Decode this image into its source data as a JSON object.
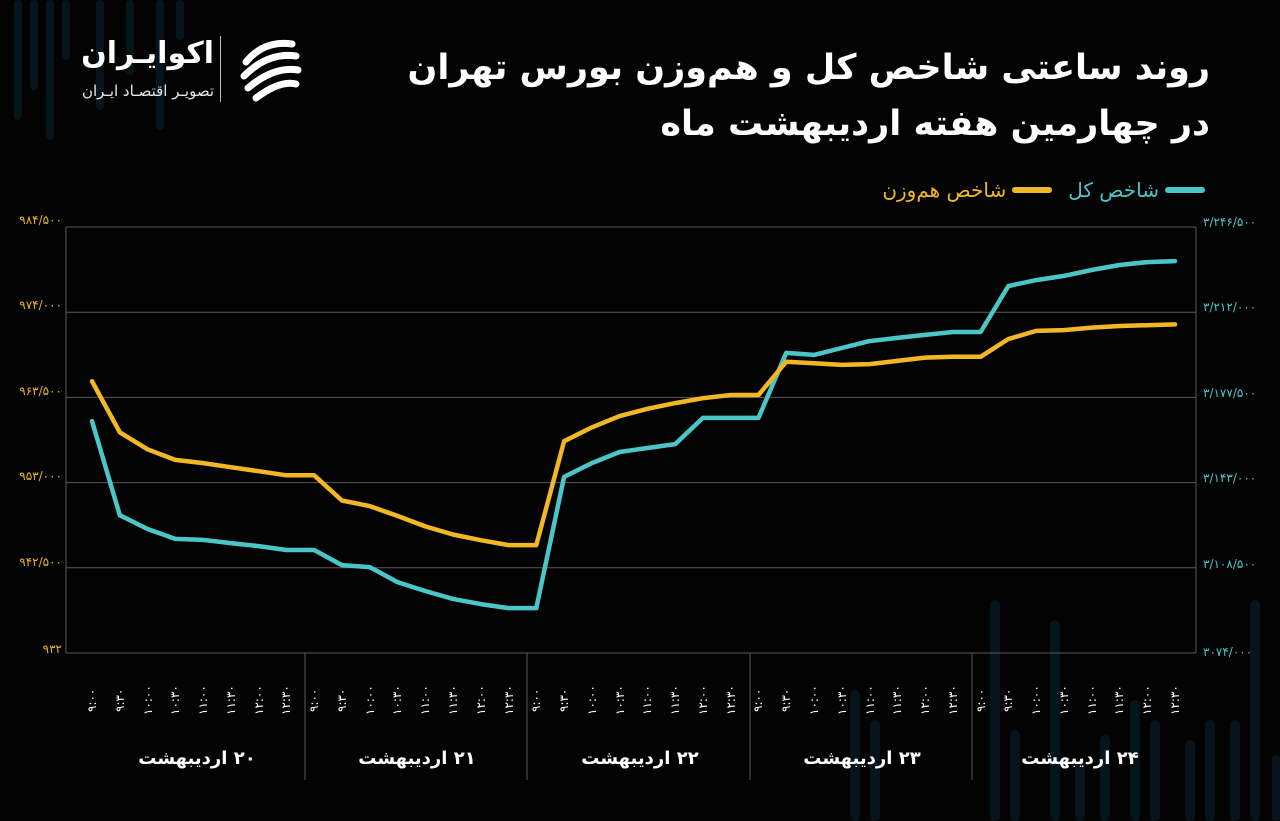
{
  "header": {
    "title_line1": "روند ساعتی شاخص کل و هم‌وزن بورس تهران",
    "title_line2": "در چهارمین هفته اردیبهشت ماه"
  },
  "logo": {
    "name": "اکوایـران",
    "tagline": "تصویـر اقتصـاد ایـران",
    "icon": "ecoiran-swirl-icon"
  },
  "legend": {
    "items": [
      {
        "label": "شاخص کل",
        "color": "#4bc6c8"
      },
      {
        "label": "شاخص هم‌وزن",
        "color": "#f2b824"
      }
    ]
  },
  "axes": {
    "left": {
      "label_color": "#e9b524",
      "ticks": [
        "۹۸۴/۵۰۰",
        "۹۷۴/۰۰۰",
        "۹۶۳/۵۰۰",
        "۹۵۳/۰۰۰",
        "۹۴۲/۵۰۰",
        "۹۳۲"
      ]
    },
    "right": {
      "label_color": "#4bc6c8",
      "ticks": [
        "۳/۲۴۶/۵۰۰",
        "۳/۲۱۲/۰۰۰",
        "۳/۱۷۷/۵۰۰",
        "۳/۱۴۳/۰۰۰",
        "۳/۱۰۸/۵۰۰",
        "۳۰۷۴/۰۰۰"
      ]
    },
    "x_time_ticks": [
      "۹:۰۰",
      "۹:۳۰",
      "۱۰:۰۰",
      "۱۰:۳۰",
      "۱۱:۰۰",
      "۱۱:۳۰",
      "۱۲:۰۰",
      "۱۲:۳۰"
    ],
    "days": [
      "۲۰ اردیبهشت",
      "۲۱ اردیبهشت",
      "۲۲ اردیبهشت",
      "۲۳ اردیبهشت",
      "۲۴ اردیبهشت"
    ]
  },
  "chart_data": {
    "type": "line",
    "title": "روند ساعتی شاخص کل و هم‌وزن بورس تهران در چهارمین هفته اردیبهشت ماه",
    "xlabel": "",
    "ylabel": "",
    "legend_position": "top-right",
    "grid": true,
    "categories": [
      "۲۰ اردیبهشت ۹:۰۰",
      "۲۰ اردیبهشت ۹:۳۰",
      "۲۰ اردیبهشت ۱۰:۰۰",
      "۲۰ اردیبهشت ۱۰:۳۰",
      "۲۰ اردیبهشت ۱۱:۰۰",
      "۲۰ اردیبهشت ۱۱:۳۰",
      "۲۰ اردیبهشت ۱۲:۰۰",
      "۲۰ اردیبهشت ۱۲:۳۰",
      "۲۱ اردیبهشت ۹:۰۰",
      "۲۱ اردیبهشت ۹:۳۰",
      "۲۱ اردیبهشت ۱۰:۰۰",
      "۲۱ اردیبهشت ۱۰:۳۰",
      "۲۱ اردیبهشت ۱۱:۰۰",
      "۲۱ اردیبهشت ۱۱:۳۰",
      "۲۱ اردیبهشت ۱۲:۰۰",
      "۲۱ اردیبهشت ۱۲:۳۰",
      "۲۲ اردیبهشت ۹:۰۰",
      "۲۲ اردیبهشت ۹:۳۰",
      "۲۲ اردیبهشت ۱۰:۰۰",
      "۲۲ اردیبهشت ۱۰:۳۰",
      "۲۲ اردیبهشت ۱۱:۰۰",
      "۲۲ اردیبهشت ۱۱:۳۰",
      "۲۲ اردیبهشت ۱۲:۰۰",
      "۲۲ اردیبهشت ۱۲:۳۰",
      "۲۳ اردیبهشت ۹:۰۰",
      "۲۳ اردیبهشت ۹:۳۰",
      "۲۳ اردیبهشت ۱۰:۰۰",
      "۲۳ اردیبهشت ۱۰:۳۰",
      "۲۳ اردیبهشت ۱۱:۰۰",
      "۲۳ اردیبهشت ۱۱:۳۰",
      "۲۳ اردیبهشت ۱۲:۰۰",
      "۲۳ اردیبهشت ۱۲:۳۰",
      "۲۴ اردیبهشت ۹:۰۰",
      "۲۴ اردیبهشت ۹:۳۰",
      "۲۴ اردیبهشت ۱۰:۰۰",
      "۲۴ اردیبهشت ۱۰:۳۰",
      "۲۴ اردیبهشت ۱۱:۰۰",
      "۲۴ اردیبهشت ۱۱:۳۰",
      "۲۴ اردیبهشت ۱۲:۰۰",
      "۲۴ اردیبهشت ۱۲:۳۰"
    ],
    "series": [
      {
        "name": "شاخص کل",
        "axis": "right",
        "color": "#4bc6c8",
        "ylim": [
          3074000,
          3246500
        ],
        "values": [
          3167900,
          3129800,
          3124200,
          3120200,
          3119800,
          3118500,
          3117300,
          3115700,
          3115700,
          3109600,
          3108800,
          3102700,
          3099100,
          3095900,
          3093800,
          3092200,
          3092200,
          3145300,
          3150900,
          3155400,
          3157000,
          3158600,
          3169200,
          3169200,
          3169200,
          3195500,
          3194700,
          3197500,
          3200300,
          3201600,
          3202800,
          3204000,
          3204000,
          3222600,
          3225000,
          3226700,
          3229100,
          3231100,
          3232300,
          3232700
        ]
      },
      {
        "name": "شاخص هم‌وزن",
        "axis": "left",
        "color": "#f2b824",
        "ylim": [
          932000,
          984500
        ],
        "values": [
          965500,
          959200,
          957100,
          955800,
          955400,
          954900,
          954400,
          953900,
          953900,
          950800,
          950100,
          948900,
          947600,
          946600,
          945900,
          945300,
          945300,
          958100,
          959800,
          961200,
          962100,
          962800,
          963400,
          963800,
          963800,
          967900,
          967700,
          967500,
          967600,
          968000,
          968400,
          968500,
          968500,
          970700,
          971700,
          971800,
          972100,
          972300,
          972400,
          972500
        ]
      }
    ],
    "y_left_ticks": [
      984500,
      974000,
      963500,
      953000,
      942500,
      932000
    ],
    "y_right_ticks": [
      3246500,
      3212000,
      3177500,
      3143000,
      3108500,
      3074000
    ]
  }
}
